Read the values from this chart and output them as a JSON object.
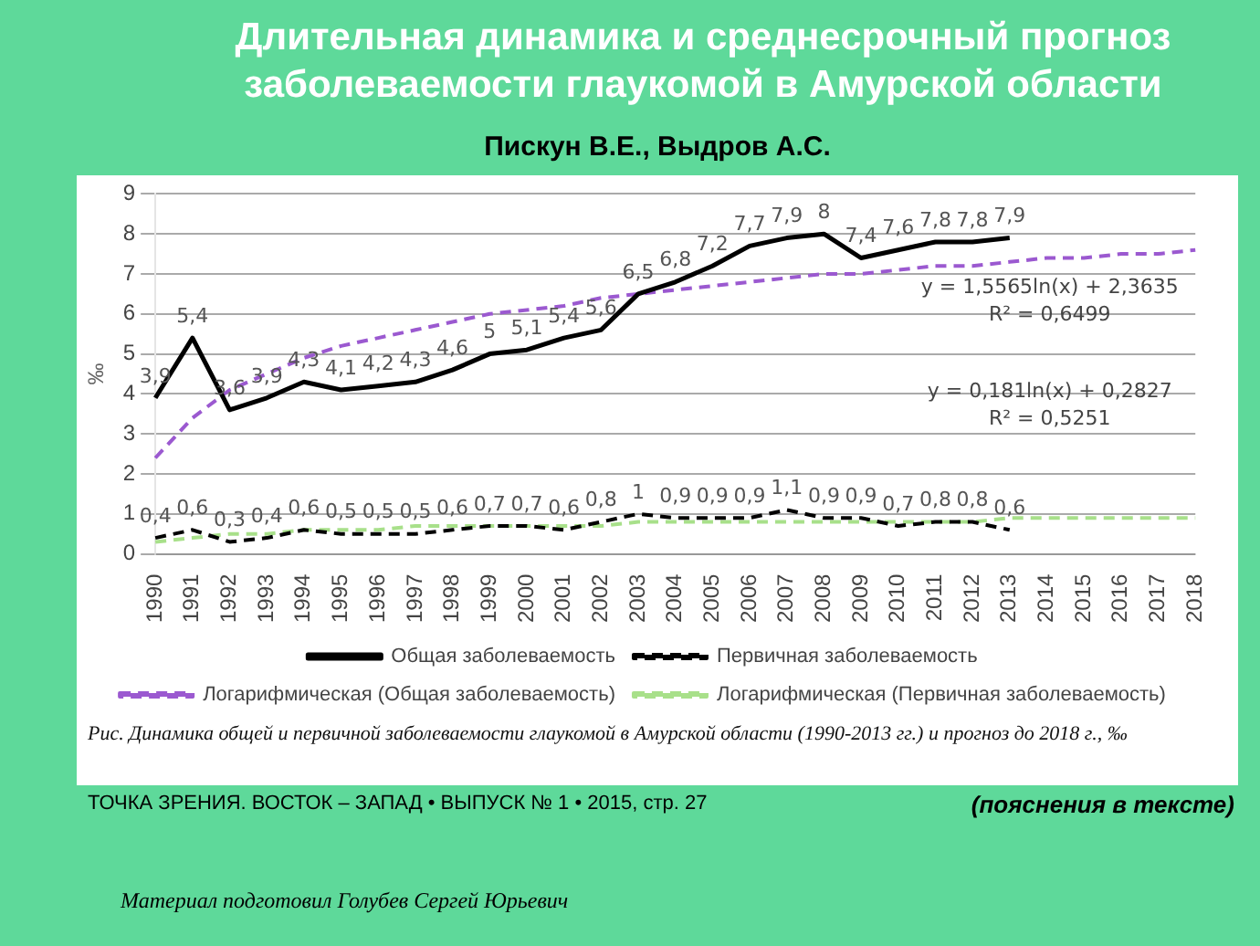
{
  "chart_data": {
    "type": "line",
    "title": "Длительная динамика и среднесрочный прогноз заболеваемости глаукомой в Амурской области",
    "subtitle": "Пискун В.Е., Выдров А.С.",
    "ylabel": "‰",
    "categories": [
      "1990",
      "1991",
      "1992",
      "1993",
      "1994",
      "1995",
      "1996",
      "1997",
      "1998",
      "1999",
      "2000",
      "2001",
      "2002",
      "2003",
      "2004",
      "2005",
      "2006",
      "2007",
      "2008",
      "2009",
      "2010",
      "2011",
      "2012",
      "2013",
      "2014",
      "2015",
      "2016",
      "2017",
      "2018"
    ],
    "series": [
      {
        "name": "Общая заболеваемость",
        "color": "#000000",
        "line_style": "solid",
        "values": [
          3.9,
          5.4,
          3.6,
          3.9,
          4.3,
          4.1,
          4.2,
          4.3,
          4.6,
          5,
          5.1,
          5.4,
          5.6,
          6.5,
          6.8,
          7.2,
          7.7,
          7.9,
          8,
          7.4,
          7.6,
          7.8,
          7.8,
          7.9,
          null,
          null,
          null,
          null,
          null
        ],
        "value_labels": [
          "3,9",
          "5,4",
          "3,6",
          "3,9",
          "4,3",
          "4,1",
          "4,2",
          "4,3",
          "4,6",
          "5",
          "5,1",
          "5,4",
          "5,6",
          "6,5",
          "6,8",
          "7,2",
          "7,7",
          "7,9",
          "8",
          "7,4",
          "7,6",
          "7,8",
          "7,8",
          "7,9",
          null,
          null,
          null,
          null,
          null
        ]
      },
      {
        "name": "Первичная заболеваемость",
        "color": "#000000",
        "line_style": "dashed",
        "values": [
          0.4,
          0.6,
          0.3,
          0.4,
          0.6,
          0.5,
          0.5,
          0.5,
          0.6,
          0.7,
          0.7,
          0.6,
          0.8,
          1,
          0.9,
          0.9,
          0.9,
          1.1,
          0.9,
          0.9,
          0.7,
          0.8,
          0.8,
          0.6,
          null,
          null,
          null,
          null,
          null
        ],
        "value_labels": [
          "0,4",
          "0,6",
          "0,3",
          "0,4",
          "0,6",
          "0,5",
          "0,5",
          "0,5",
          "0,6",
          "0,7",
          "0,7",
          "0,6",
          "0,8",
          "1",
          "0,9",
          "0,9",
          "0,9",
          "1,1",
          "0,9",
          "0,9",
          "0,7",
          "0,8",
          "0,8",
          "0,6",
          null,
          null,
          null,
          null,
          null
        ]
      },
      {
        "name": "Логарифмическая (Общая заболеваемость)",
        "color": "#9b59d0",
        "line_style": "dashed",
        "values": [
          2.4,
          3.4,
          4.1,
          4.5,
          4.9,
          5.2,
          5.4,
          5.6,
          5.8,
          6,
          6.1,
          6.2,
          6.4,
          6.5,
          6.6,
          6.7,
          6.8,
          6.9,
          7,
          7,
          7.1,
          7.2,
          7.2,
          7.3,
          7.4,
          7.4,
          7.5,
          7.5,
          7.6
        ]
      },
      {
        "name": "Логарифмическая (Первичная заболеваемость)",
        "color": "#a8e08a",
        "line_style": "dashed",
        "values": [
          0.3,
          0.4,
          0.5,
          0.5,
          0.6,
          0.6,
          0.6,
          0.7,
          0.7,
          0.7,
          0.7,
          0.7,
          0.7,
          0.8,
          0.8,
          0.8,
          0.8,
          0.8,
          0.8,
          0.8,
          0.8,
          0.8,
          0.8,
          0.9,
          0.9,
          0.9,
          0.9,
          0.9,
          0.9
        ]
      }
    ],
    "ylim": [
      0,
      9
    ],
    "yticks": [
      0,
      1,
      2,
      3,
      4,
      5,
      6,
      7,
      8,
      9
    ],
    "grid": "y",
    "legend": "bottom",
    "marker": "none",
    "annotations": [
      "y = 1,5565ln(x) + 2,3635\nR² = 0,6499",
      "y = 0,181ln(x) + 0,2827\nR² = 0,5251",
      "Рис. Динамика общей и первичной заболеваемости глаукомой в Амурской области (1990-2013 гг.) и прогноз до 2018 г., ‰",
      "ТОЧКА ЗРЕНИЯ. ВОСТОК – ЗАПАД • ВЫПУСК № 1 • 2015, стр. 27",
      "(пояснения в тексте)",
      "Материал подготовил Голубев Сергей Юрьевич"
    ]
  }
}
